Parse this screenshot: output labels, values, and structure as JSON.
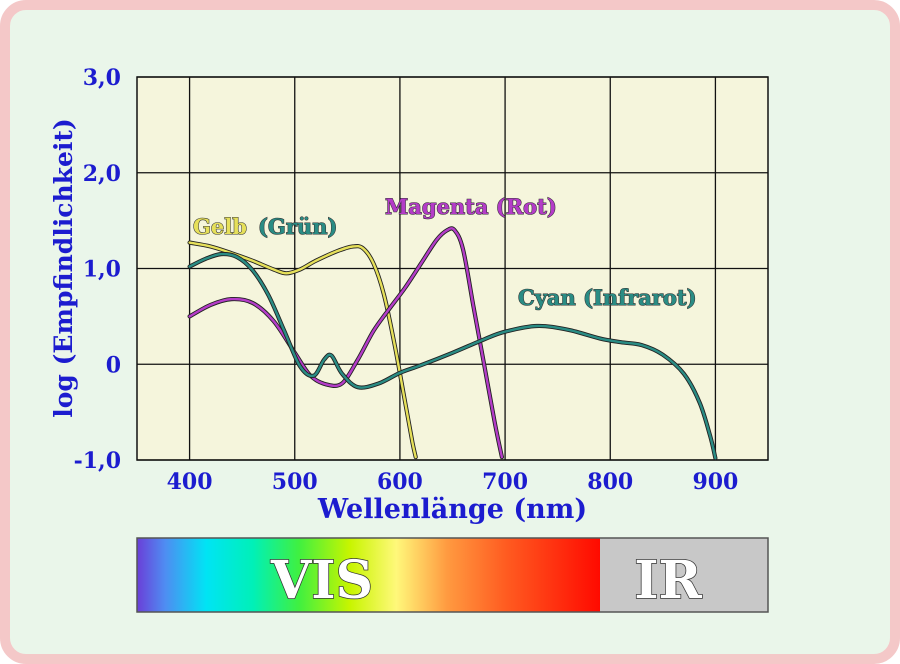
{
  "colors": {
    "frame_border": "#f4c8c8",
    "frame_fill": "#eaf6ea",
    "plot_fill": "#f5f5dc",
    "label_blue": "#1c1ccf",
    "gelb": "#e6e05a",
    "gelb_outline": "#6a6a10",
    "magenta": "#b43cc8",
    "cyan": "#2a8c84",
    "ir_box": "#c8c8c8"
  },
  "chart_data": {
    "type": "line",
    "xlabel": "Wellenlänge (nm)",
    "ylabel": "log (Empfindlichkeit)",
    "xlim": [
      350,
      950
    ],
    "ylim": [
      -1,
      3
    ],
    "x_ticks": [
      400,
      500,
      600,
      700,
      800,
      900
    ],
    "y_ticks": [
      -1,
      0,
      1,
      2,
      3
    ],
    "y_tick_labels": [
      "-1,0",
      "0",
      "1,0",
      "2,0",
      "3,0"
    ],
    "grid": true,
    "series": [
      {
        "name": "Gelb",
        "label_part1": "Gelb",
        "label_part2": "(Grün)",
        "color_key": "gelb",
        "points": [
          [
            400,
            1.27
          ],
          [
            420,
            1.23
          ],
          [
            440,
            1.16
          ],
          [
            460,
            1.08
          ],
          [
            480,
            0.99
          ],
          [
            492,
            0.95
          ],
          [
            505,
            0.99
          ],
          [
            520,
            1.08
          ],
          [
            540,
            1.18
          ],
          [
            555,
            1.23
          ],
          [
            565,
            1.21
          ],
          [
            575,
            1.05
          ],
          [
            585,
            0.72
          ],
          [
            595,
            0.2
          ],
          [
            605,
            -0.4
          ],
          [
            612,
            -0.82
          ],
          [
            615,
            -0.97
          ]
        ]
      },
      {
        "name": "Magenta (Rot)",
        "color_key": "magenta",
        "points": [
          [
            400,
            0.5
          ],
          [
            420,
            0.62
          ],
          [
            440,
            0.68
          ],
          [
            460,
            0.64
          ],
          [
            480,
            0.45
          ],
          [
            500,
            0.12
          ],
          [
            515,
            -0.12
          ],
          [
            530,
            -0.21
          ],
          [
            545,
            -0.2
          ],
          [
            560,
            0.05
          ],
          [
            575,
            0.35
          ],
          [
            590,
            0.58
          ],
          [
            605,
            0.8
          ],
          [
            620,
            1.05
          ],
          [
            635,
            1.3
          ],
          [
            645,
            1.4
          ],
          [
            652,
            1.4
          ],
          [
            660,
            1.2
          ],
          [
            670,
            0.6
          ],
          [
            680,
            0.0
          ],
          [
            690,
            -0.6
          ],
          [
            697,
            -0.97
          ]
        ]
      },
      {
        "name": "Cyan (Infrarot)",
        "color_key": "cyan",
        "points": [
          [
            400,
            1.02
          ],
          [
            415,
            1.1
          ],
          [
            430,
            1.15
          ],
          [
            445,
            1.12
          ],
          [
            460,
            0.98
          ],
          [
            475,
            0.72
          ],
          [
            490,
            0.35
          ],
          [
            505,
            -0.02
          ],
          [
            518,
            -0.12
          ],
          [
            528,
            0.05
          ],
          [
            535,
            0.09
          ],
          [
            545,
            -0.1
          ],
          [
            560,
            -0.24
          ],
          [
            580,
            -0.2
          ],
          [
            600,
            -0.09
          ],
          [
            620,
            -0.01
          ],
          [
            650,
            0.12
          ],
          [
            680,
            0.26
          ],
          [
            700,
            0.34
          ],
          [
            730,
            0.4
          ],
          [
            760,
            0.36
          ],
          [
            790,
            0.27
          ],
          [
            810,
            0.23
          ],
          [
            830,
            0.2
          ],
          [
            850,
            0.1
          ],
          [
            870,
            -0.1
          ],
          [
            885,
            -0.4
          ],
          [
            895,
            -0.75
          ],
          [
            900,
            -0.98
          ]
        ]
      }
    ]
  },
  "spectrum": {
    "vis_label": "VIS",
    "ir_label": "IR"
  }
}
